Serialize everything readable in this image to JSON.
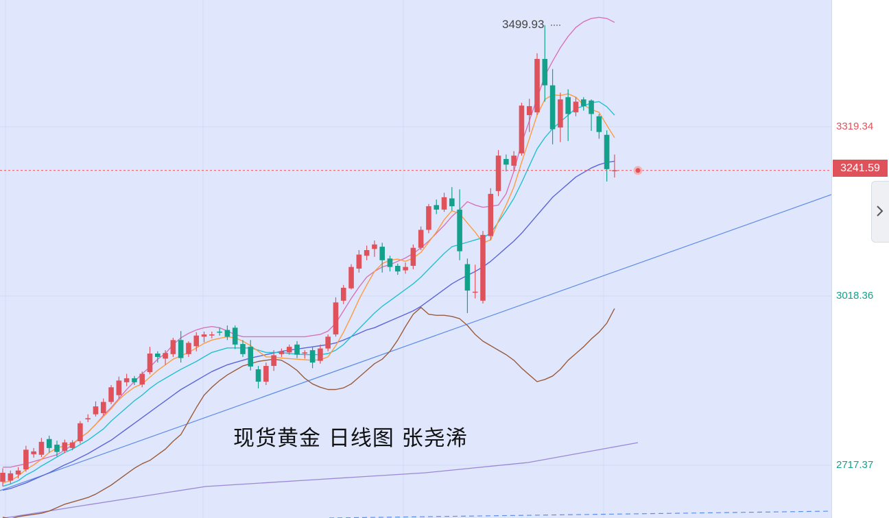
{
  "caption": "现货黄金 日线图 张尧浠",
  "high_label": "3499.93",
  "current_price": "3241.59",
  "price_axis": [
    "3319.34",
    "3018.36",
    "2717.37"
  ],
  "colors": {
    "background": "#e0e7fd",
    "up_candle": "#e0525b",
    "down_candle": "#13a18b",
    "ma_fast": "#ff9a3c",
    "ma_mid": "#22bfd0",
    "ma_slow": "#5a64d8",
    "boll_upper": "#d773b8",
    "boll_lower": "#9a5a3a",
    "trendline": "#5b8be8",
    "slow_line": "#9a86d6",
    "current_line": "#e0525b"
  },
  "icons": {
    "collapse": "chevron-right-icon"
  },
  "chart_data": {
    "type": "candlestick",
    "y_axis_labels": [
      3319.34,
      3018.36,
      2717.37
    ],
    "current_price": 3241.59,
    "high": 3499.93,
    "candles": [
      [
        2688,
        2704,
        2680,
        2712
      ],
      [
        2690,
        2703,
        2684,
        2708
      ],
      [
        2701,
        2708,
        2694,
        2714
      ],
      [
        2710,
        2745,
        2706,
        2752
      ],
      [
        2737,
        2742,
        2731,
        2748
      ],
      [
        2736,
        2759,
        2732,
        2766
      ],
      [
        2764,
        2748,
        2740,
        2770
      ],
      [
        2754,
        2741,
        2733,
        2761
      ],
      [
        2743,
        2758,
        2739,
        2763
      ],
      [
        2748,
        2758,
        2744,
        2762
      ],
      [
        2760,
        2792,
        2756,
        2796
      ],
      [
        2799,
        2801,
        2794,
        2808
      ],
      [
        2808,
        2822,
        2804,
        2831
      ],
      [
        2810,
        2830,
        2806,
        2836
      ],
      [
        2830,
        2856,
        2826,
        2860
      ],
      [
        2842,
        2868,
        2836,
        2875
      ],
      [
        2865,
        2872,
        2858,
        2880
      ],
      [
        2872,
        2865,
        2860,
        2876
      ],
      [
        2861,
        2880,
        2856,
        2884
      ],
      [
        2883,
        2916,
        2879,
        2928
      ],
      [
        2916,
        2910,
        2900,
        2920
      ],
      [
        2907,
        2917,
        2896,
        2922
      ],
      [
        2915,
        2940,
        2910,
        2944
      ],
      [
        2940,
        2908,
        2900,
        2956
      ],
      [
        2915,
        2935,
        2910,
        2938
      ],
      [
        2929,
        2948,
        2920,
        2954
      ],
      [
        2946,
        2950,
        2936,
        2955
      ],
      [
        2948,
        2950,
        2943,
        2955
      ],
      [
        2955,
        2954,
        2948,
        2962
      ],
      [
        2958,
        2946,
        2940,
        2966
      ],
      [
        2962,
        2932,
        2924,
        2966
      ],
      [
        2933,
        2915,
        2910,
        2940
      ],
      [
        2928,
        2893,
        2886,
        2940
      ],
      [
        2888,
        2866,
        2854,
        2894
      ],
      [
        2866,
        2894,
        2860,
        2900
      ],
      [
        2894,
        2913,
        2885,
        2922
      ],
      [
        2915,
        2920,
        2910,
        2925
      ],
      [
        2918,
        2928,
        2914,
        2932
      ],
      [
        2932,
        2914,
        2908,
        2938
      ],
      [
        2916,
        2918,
        2907,
        2922
      ],
      [
        2922,
        2900,
        2890,
        2928
      ],
      [
        2903,
        2925,
        2898,
        2932
      ],
      [
        2925,
        2946,
        2920,
        2950
      ],
      [
        2950,
        3007,
        2946,
        3016
      ],
      [
        3010,
        3033,
        3004,
        3038
      ],
      [
        3032,
        3070,
        3030,
        3075
      ],
      [
        3067,
        3092,
        3060,
        3100
      ],
      [
        3090,
        3100,
        3082,
        3108
      ],
      [
        3102,
        3110,
        3088,
        3117
      ],
      [
        3106,
        3082,
        3060,
        3113
      ],
      [
        3085,
        3070,
        3062,
        3090
      ],
      [
        3072,
        3062,
        3056,
        3076
      ],
      [
        3064,
        3070,
        3058,
        3078
      ],
      [
        3072,
        3104,
        3066,
        3110
      ],
      [
        3104,
        3136,
        3100,
        3142
      ],
      [
        3136,
        3178,
        3130,
        3182
      ],
      [
        3180,
        3172,
        3164,
        3190
      ],
      [
        3172,
        3194,
        3168,
        3202
      ],
      [
        3192,
        3178,
        3170,
        3212
      ],
      [
        3172,
        3098,
        3082,
        3208
      ],
      [
        3075,
        3028,
        2988,
        3085
      ],
      [
        3026,
        3026,
        3014,
        3074
      ],
      [
        3010,
        3127,
        3005,
        3134
      ],
      [
        3125,
        3200,
        3118,
        3210
      ],
      [
        3205,
        3268,
        3196,
        3278
      ],
      [
        3262,
        3252,
        3240,
        3270
      ],
      [
        3250,
        3268,
        3240,
        3276
      ],
      [
        3272,
        3357,
        3268,
        3362
      ],
      [
        3340,
        3356,
        3310,
        3369
      ],
      [
        3345,
        3440,
        3340,
        3450
      ],
      [
        3440,
        3393,
        3364,
        3499.93
      ],
      [
        3393,
        3315,
        3288,
        3422
      ],
      [
        3318,
        3368,
        3292,
        3380
      ],
      [
        3372,
        3342,
        3294,
        3386
      ],
      [
        3345,
        3364,
        3338,
        3372
      ],
      [
        3368,
        3356,
        3348,
        3372
      ],
      [
        3366,
        3342,
        3312,
        3368
      ],
      [
        3338,
        3310,
        3298,
        3342
      ],
      [
        3305,
        3244,
        3222,
        3313
      ],
      [
        3242,
        3242,
        3229,
        3270
      ]
    ],
    "ma_fast": [
      2686,
      2690,
      2698,
      2710,
      2718,
      2728,
      2740,
      2748,
      2752,
      2756,
      2766,
      2776,
      2790,
      2804,
      2818,
      2834,
      2846,
      2856,
      2862,
      2874,
      2886,
      2896,
      2906,
      2912,
      2918,
      2926,
      2934,
      2940,
      2943,
      2946,
      2944,
      2938,
      2930,
      2920,
      2910,
      2910,
      2908,
      2907,
      2906,
      2905,
      2904,
      2905,
      2910,
      2930,
      2954,
      2982,
      3012,
      3038,
      3062,
      3076,
      3082,
      3084,
      3080,
      3086,
      3096,
      3114,
      3132,
      3154,
      3170,
      3165,
      3148,
      3132,
      3113,
      3118,
      3152,
      3180,
      3212,
      3256,
      3298,
      3340,
      3368,
      3376,
      3375,
      3378,
      3372,
      3358,
      3350,
      3345,
      3322,
      3300
    ],
    "ma_mid": [
      2680,
      2684,
      2690,
      2700,
      2707,
      2716,
      2724,
      2732,
      2740,
      2746,
      2754,
      2762,
      2772,
      2782,
      2796,
      2808,
      2820,
      2832,
      2842,
      2854,
      2864,
      2872,
      2880,
      2888,
      2895,
      2902,
      2910,
      2918,
      2922,
      2926,
      2926,
      2926,
      2926,
      2922,
      2918,
      2918,
      2918,
      2916,
      2915,
      2914,
      2914,
      2914,
      2916,
      2922,
      2932,
      2946,
      2960,
      2974,
      2988,
      3000,
      3010,
      3020,
      3030,
      3040,
      3052,
      3066,
      3080,
      3094,
      3106,
      3110,
      3114,
      3118,
      3122,
      3130,
      3150,
      3170,
      3192,
      3220,
      3250,
      3280,
      3300,
      3316,
      3328,
      3340,
      3352,
      3356,
      3362,
      3364,
      3355,
      3340
    ],
    "ma_slow": [
      2673,
      2676,
      2681,
      2686,
      2692,
      2698,
      2704,
      2711,
      2718,
      2724,
      2731,
      2738,
      2746,
      2754,
      2762,
      2772,
      2782,
      2792,
      2802,
      2812,
      2822,
      2832,
      2842,
      2852,
      2860,
      2868,
      2876,
      2884,
      2890,
      2896,
      2900,
      2904,
      2908,
      2911,
      2914,
      2917,
      2920,
      2922,
      2924,
      2926,
      2928,
      2930,
      2932,
      2935,
      2940,
      2946,
      2952,
      2958,
      2962,
      2968,
      2974,
      2980,
      2986,
      2992,
      3000,
      3010,
      3020,
      3030,
      3040,
      3048,
      3055,
      3062,
      3070,
      3080,
      3092,
      3104,
      3116,
      3130,
      3146,
      3162,
      3178,
      3194,
      3206,
      3218,
      3230,
      3238,
      3246,
      3252,
      3256,
      3258
    ],
    "boll_upper": [
      2714,
      2714,
      2717,
      2720,
      2724,
      2728,
      2732,
      2736,
      2744,
      2754,
      2766,
      2776,
      2790,
      2806,
      2820,
      2836,
      2852,
      2866,
      2880,
      2892,
      2906,
      2916,
      2932,
      2944,
      2952,
      2958,
      2962,
      2964,
      2962,
      2956,
      2950,
      2946,
      2946,
      2946,
      2946,
      2946,
      2946,
      2946,
      2946,
      2946,
      2948,
      2950,
      2956,
      2970,
      2992,
      3014,
      3034,
      3052,
      3062,
      3070,
      3074,
      3080,
      3086,
      3094,
      3104,
      3116,
      3130,
      3144,
      3160,
      3172,
      3186,
      3180,
      3176,
      3178,
      3180,
      3200,
      3240,
      3290,
      3330,
      3370,
      3410,
      3436,
      3460,
      3480,
      3496,
      3506,
      3512,
      3514,
      3512,
      3505
    ],
    "boll_lower": [
      2625,
      2622,
      2626,
      2628,
      2630,
      2632,
      2636,
      2642,
      2648,
      2652,
      2656,
      2660,
      2666,
      2674,
      2682,
      2692,
      2702,
      2712,
      2720,
      2726,
      2736,
      2746,
      2760,
      2772,
      2796,
      2820,
      2842,
      2856,
      2868,
      2878,
      2886,
      2894,
      2898,
      2902,
      2904,
      2906,
      2904,
      2896,
      2886,
      2872,
      2862,
      2856,
      2852,
      2852,
      2855,
      2862,
      2874,
      2886,
      2898,
      2906,
      2920,
      2940,
      2964,
      2986,
      2998,
      2986,
      2984,
      2984,
      2982,
      2978,
      2966,
      2950,
      2938,
      2930,
      2922,
      2914,
      2904,
      2890,
      2878,
      2866,
      2870,
      2876,
      2888,
      2904,
      2916,
      2928,
      2942,
      2954,
      2970,
      2996
    ]
  }
}
